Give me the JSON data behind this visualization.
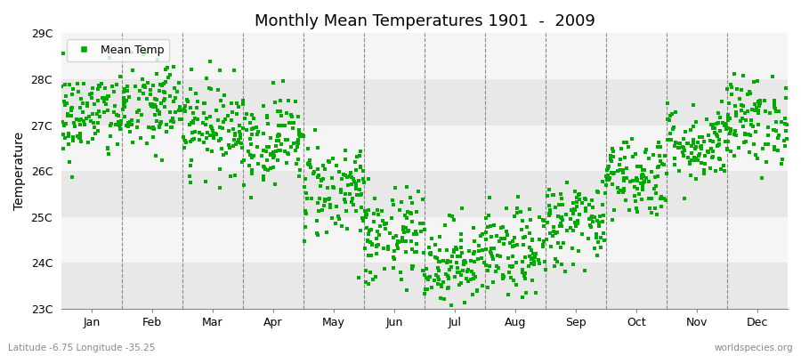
{
  "title": "Monthly Mean Temperatures 1901  -  2009",
  "ylabel": "Temperature",
  "bottom_left": "Latitude -6.75 Longitude -35.25",
  "bottom_right": "worldspecies.org",
  "legend_label": "Mean Temp",
  "ylim": [
    23,
    29
  ],
  "yticks": [
    23,
    24,
    25,
    26,
    27,
    28,
    29
  ],
  "ytick_labels": [
    "23C",
    "24C",
    "25C",
    "26C",
    "27C",
    "28C",
    "29C"
  ],
  "months": [
    "Jan",
    "Feb",
    "Mar",
    "Apr",
    "May",
    "Jun",
    "Jul",
    "Aug",
    "Sep",
    "Oct",
    "Nov",
    "Dec"
  ],
  "mean_temps": [
    27.2,
    27.4,
    27.0,
    26.7,
    25.6,
    24.5,
    24.0,
    24.2,
    24.9,
    25.9,
    26.6,
    27.1
  ],
  "std_temps": [
    0.5,
    0.55,
    0.5,
    0.48,
    0.55,
    0.55,
    0.48,
    0.48,
    0.48,
    0.45,
    0.42,
    0.48
  ],
  "n_years": 109,
  "seed": 42,
  "marker_color": "#00aa00",
  "marker": "s",
  "marker_size": 10,
  "fig_width": 9.0,
  "fig_height": 4.0,
  "dpi": 100
}
